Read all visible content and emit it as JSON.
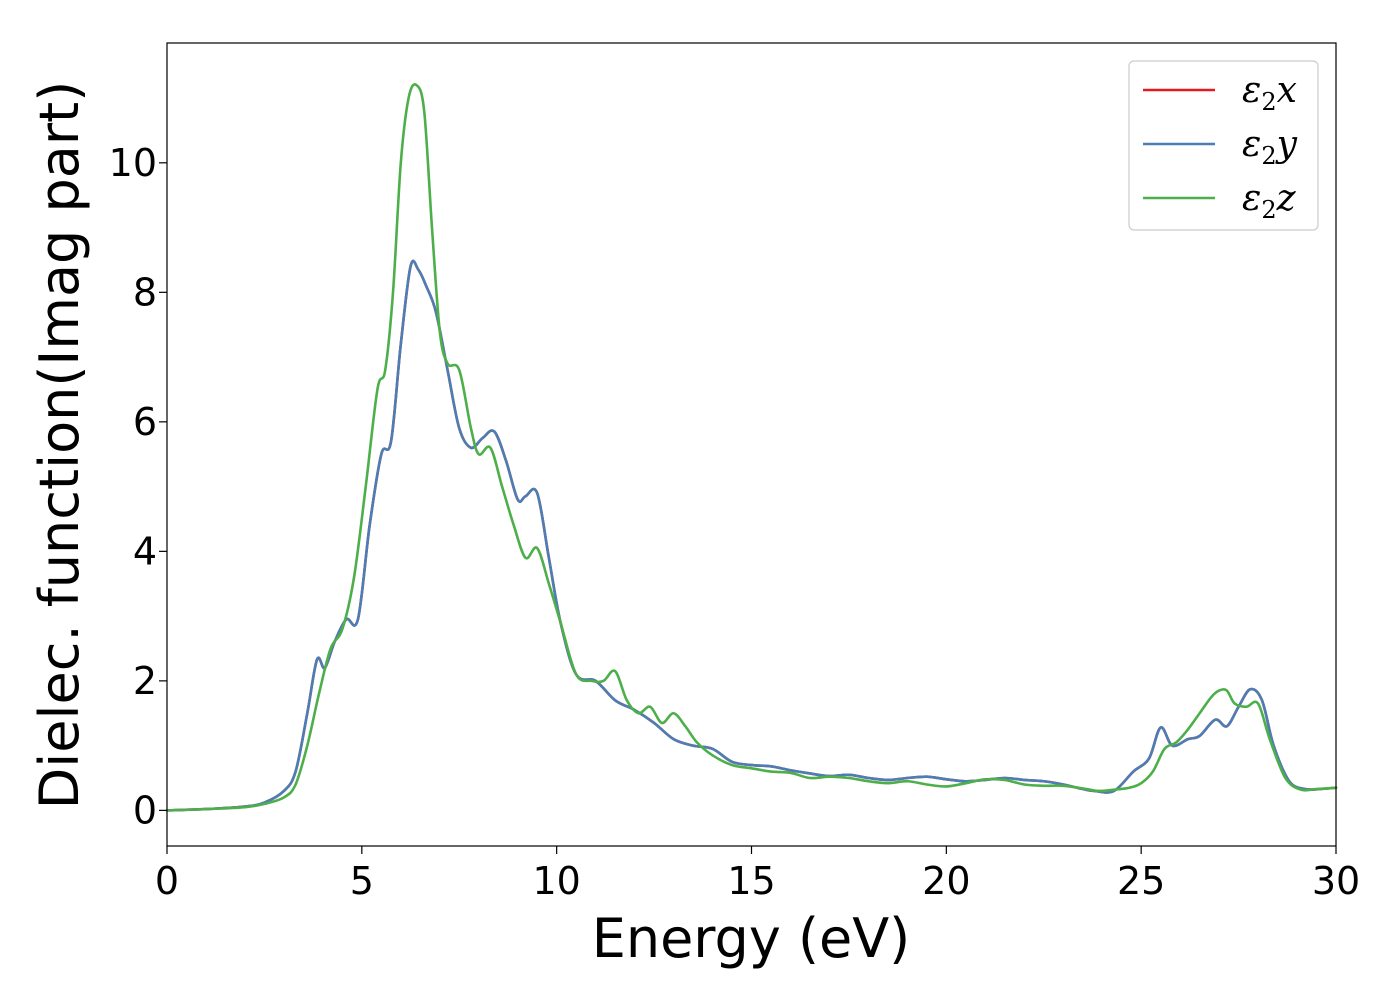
{
  "chart_data": {
    "type": "line",
    "title": "",
    "xlabel": "Energy (eV)",
    "ylabel": "Dielec. function(Imag part)",
    "xlim": [
      0,
      30
    ],
    "ylim": [
      -0.55,
      11.85
    ],
    "xticks": [
      0,
      5,
      10,
      15,
      20,
      25,
      30
    ],
    "yticks": [
      0,
      2,
      4,
      6,
      8,
      10
    ],
    "grid": false,
    "legend_position": "top-right",
    "series": [
      {
        "name": "ε2x",
        "legend_base": "ε",
        "legend_sub": "2",
        "legend_tail": "x",
        "color": "#e41a1c",
        "x": [
          0,
          1,
          2,
          2.5,
          3,
          3.3,
          3.6,
          3.85,
          4.05,
          4.3,
          4.6,
          4.9,
          5.2,
          5.5,
          5.75,
          6.0,
          6.25,
          6.45,
          6.65,
          6.9,
          7.2,
          7.5,
          7.8,
          8.1,
          8.4,
          8.7,
          9.0,
          9.2,
          9.5,
          9.8,
          10.1,
          10.5,
          11.0,
          11.5,
          12.0,
          12.5,
          13.0,
          13.5,
          14.0,
          14.5,
          15.0,
          15.5,
          16.0,
          16.5,
          17.0,
          17.5,
          18.0,
          18.5,
          19.0,
          19.5,
          20.0,
          20.5,
          21.0,
          21.5,
          22.0,
          22.5,
          23.0,
          23.5,
          23.8,
          24.3,
          24.8,
          25.2,
          25.5,
          25.8,
          26.2,
          26.5,
          26.9,
          27.2,
          27.5,
          27.8,
          28.1,
          28.4,
          28.8,
          29.2,
          29.6,
          30
        ],
        "values": [
          0,
          0.02,
          0.06,
          0.12,
          0.3,
          0.6,
          1.5,
          2.33,
          2.2,
          2.6,
          2.95,
          2.95,
          4.4,
          5.5,
          5.7,
          7.2,
          8.4,
          8.35,
          8.1,
          7.7,
          6.8,
          5.9,
          5.6,
          5.75,
          5.85,
          5.4,
          4.8,
          4.85,
          4.9,
          3.9,
          2.9,
          2.1,
          2.0,
          1.7,
          1.55,
          1.35,
          1.1,
          1.0,
          0.95,
          0.75,
          0.7,
          0.68,
          0.62,
          0.57,
          0.53,
          0.55,
          0.5,
          0.47,
          0.5,
          0.52,
          0.48,
          0.45,
          0.47,
          0.5,
          0.47,
          0.45,
          0.4,
          0.33,
          0.3,
          0.3,
          0.6,
          0.8,
          1.28,
          1.0,
          1.1,
          1.15,
          1.4,
          1.3,
          1.6,
          1.87,
          1.7,
          1.0,
          0.45,
          0.33,
          0.33,
          0.35
        ]
      },
      {
        "name": "ε2y",
        "legend_base": "ε",
        "legend_sub": "2",
        "legend_tail": "y",
        "color": "#4a7eb5",
        "x": [
          0,
          1,
          2,
          2.5,
          3,
          3.3,
          3.6,
          3.85,
          4.05,
          4.3,
          4.6,
          4.9,
          5.2,
          5.5,
          5.75,
          6.0,
          6.25,
          6.45,
          6.65,
          6.9,
          7.2,
          7.5,
          7.8,
          8.1,
          8.4,
          8.7,
          9.0,
          9.2,
          9.5,
          9.8,
          10.1,
          10.5,
          11.0,
          11.5,
          12.0,
          12.5,
          13.0,
          13.5,
          14.0,
          14.5,
          15.0,
          15.5,
          16.0,
          16.5,
          17.0,
          17.5,
          18.0,
          18.5,
          19.0,
          19.5,
          20.0,
          20.5,
          21.0,
          21.5,
          22.0,
          22.5,
          23.0,
          23.5,
          23.8,
          24.3,
          24.8,
          25.2,
          25.5,
          25.8,
          26.2,
          26.5,
          26.9,
          27.2,
          27.5,
          27.8,
          28.1,
          28.4,
          28.8,
          29.2,
          29.6,
          30
        ],
        "values": [
          0,
          0.02,
          0.06,
          0.12,
          0.3,
          0.6,
          1.5,
          2.33,
          2.2,
          2.6,
          2.95,
          2.95,
          4.4,
          5.5,
          5.7,
          7.2,
          8.4,
          8.35,
          8.1,
          7.7,
          6.8,
          5.9,
          5.6,
          5.75,
          5.85,
          5.4,
          4.8,
          4.85,
          4.9,
          3.9,
          2.9,
          2.1,
          2.0,
          1.7,
          1.55,
          1.35,
          1.1,
          1.0,
          0.95,
          0.75,
          0.7,
          0.68,
          0.62,
          0.57,
          0.53,
          0.55,
          0.5,
          0.47,
          0.5,
          0.52,
          0.48,
          0.45,
          0.47,
          0.5,
          0.47,
          0.45,
          0.4,
          0.33,
          0.3,
          0.3,
          0.6,
          0.8,
          1.28,
          1.0,
          1.1,
          1.15,
          1.4,
          1.3,
          1.6,
          1.87,
          1.7,
          1.0,
          0.45,
          0.33,
          0.33,
          0.35
        ]
      },
      {
        "name": "ε2z",
        "legend_base": "ε",
        "legend_sub": "2",
        "legend_tail": "z",
        "color": "#4daf4a",
        "x": [
          0,
          1,
          2,
          2.5,
          3,
          3.3,
          3.6,
          3.9,
          4.2,
          4.5,
          4.8,
          5.1,
          5.4,
          5.6,
          5.8,
          6.0,
          6.2,
          6.4,
          6.6,
          6.8,
          7.0,
          7.2,
          7.5,
          7.8,
          8.0,
          8.3,
          8.6,
          8.9,
          9.2,
          9.5,
          9.8,
          10.1,
          10.5,
          10.9,
          11.2,
          11.5,
          11.8,
          12.1,
          12.4,
          12.7,
          13.0,
          13.3,
          13.6,
          14.0,
          14.5,
          15.0,
          15.5,
          16.0,
          16.5,
          17.0,
          17.5,
          18.0,
          18.5,
          19.0,
          19.5,
          20.0,
          20.5,
          21.0,
          21.5,
          22.0,
          22.5,
          23.0,
          23.5,
          23.9,
          24.3,
          24.7,
          25.0,
          25.3,
          25.6,
          25.9,
          26.2,
          26.5,
          26.8,
          27.0,
          27.2,
          27.4,
          27.7,
          28.0,
          28.3,
          28.7,
          29.1,
          29.5,
          30
        ],
        "values": [
          0,
          0.02,
          0.05,
          0.1,
          0.2,
          0.4,
          1.0,
          1.8,
          2.5,
          2.8,
          3.6,
          5.0,
          6.5,
          6.8,
          8.0,
          10.0,
          11.0,
          11.2,
          10.8,
          9.0,
          7.4,
          6.9,
          6.8,
          5.9,
          5.5,
          5.6,
          5.0,
          4.4,
          3.9,
          4.05,
          3.5,
          2.9,
          2.1,
          2.0,
          2.0,
          2.15,
          1.7,
          1.5,
          1.6,
          1.35,
          1.5,
          1.3,
          1.05,
          0.85,
          0.7,
          0.65,
          0.6,
          0.58,
          0.5,
          0.52,
          0.5,
          0.45,
          0.42,
          0.45,
          0.4,
          0.37,
          0.42,
          0.48,
          0.47,
          0.4,
          0.38,
          0.38,
          0.34,
          0.3,
          0.32,
          0.35,
          0.42,
          0.6,
          0.95,
          1.05,
          1.25,
          1.5,
          1.75,
          1.85,
          1.85,
          1.65,
          1.6,
          1.65,
          1.1,
          0.5,
          0.32,
          0.33,
          0.35
        ]
      }
    ]
  }
}
